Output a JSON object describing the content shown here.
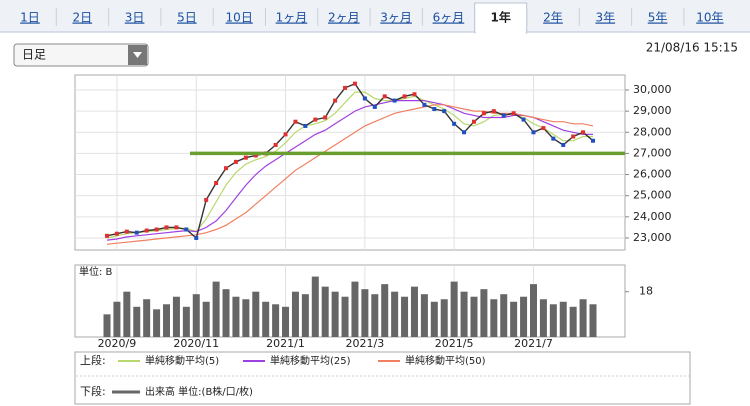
{
  "tabs": [
    "1日",
    "2日",
    "3日",
    "5日",
    "10日",
    "1ヶ月",
    "2ヶ月",
    "3ヶ月",
    "6ヶ月",
    "1年",
    "2年",
    "3年",
    "5年",
    "10年"
  ],
  "selected_tab": 9,
  "dropdown": "日足",
  "timestamp": "21/08/16 15:15",
  "legend": {
    "upper": "上段:",
    "lower": "下段:"
  },
  "chart_data": [
    {
      "type": "line",
      "categories": [
        null,
        "2020/9",
        null,
        null,
        null,
        null,
        null,
        null,
        null,
        "2020/11",
        null,
        null,
        null,
        null,
        null,
        null,
        null,
        null,
        "2021/1",
        null,
        null,
        null,
        null,
        null,
        null,
        null,
        "2021/3",
        null,
        null,
        null,
        null,
        null,
        null,
        null,
        null,
        "2021/5",
        null,
        null,
        null,
        null,
        null,
        null,
        null,
        "2021/7",
        null,
        null,
        null,
        null,
        null,
        null
      ],
      "price_values": [
        23100,
        23200,
        23300,
        23250,
        23350,
        23400,
        23500,
        23500,
        23400,
        23000,
        24800,
        25600,
        26300,
        26600,
        26800,
        26900,
        27000,
        27400,
        27900,
        28500,
        28300,
        28600,
        28700,
        29500,
        30100,
        30300,
        29600,
        29200,
        29700,
        29500,
        29700,
        29800,
        29300,
        29100,
        29000,
        28400,
        28000,
        28500,
        28900,
        29000,
        28800,
        28900,
        28600,
        28000,
        28200,
        27700,
        27400,
        27800,
        28000,
        27600
      ],
      "price_color": "#333333",
      "series": [
        {
          "name": "単純移動平均(5)",
          "color": "#b8d86a",
          "values": [
            23000,
            23100,
            23200,
            23250,
            23300,
            23350,
            23400,
            23450,
            23450,
            23300,
            23900,
            24700,
            25500,
            26100,
            26500,
            26700,
            26850,
            27100,
            27500,
            28000,
            28300,
            28400,
            28550,
            28900,
            29400,
            29900,
            29900,
            29600,
            29500,
            29500,
            29600,
            29700,
            29500,
            29300,
            29100,
            28800,
            28400,
            28300,
            28500,
            28800,
            28850,
            28850,
            28700,
            28400,
            28200,
            27900,
            27600,
            27600,
            27800,
            27800
          ]
        },
        {
          "name": "単純移動平均(25)",
          "color": "#a040e0",
          "values": [
            22900,
            22950,
            23050,
            23100,
            23150,
            23200,
            23250,
            23300,
            23350,
            23300,
            23500,
            23800,
            24300,
            24900,
            25500,
            26000,
            26400,
            26700,
            27000,
            27300,
            27600,
            27900,
            28100,
            28400,
            28700,
            29000,
            29200,
            29300,
            29400,
            29500,
            29500,
            29500,
            29500,
            29400,
            29300,
            29100,
            28900,
            28800,
            28700,
            28700,
            28700,
            28800,
            28800,
            28700,
            28500,
            28300,
            28100,
            28000,
            27900,
            27900
          ]
        },
        {
          "name": "単純移動平均(50)",
          "color": "#f08060",
          "values": [
            22700,
            22750,
            22800,
            22850,
            22900,
            22950,
            23000,
            23050,
            23100,
            23150,
            23250,
            23400,
            23600,
            23900,
            24200,
            24600,
            25000,
            25400,
            25800,
            26200,
            26500,
            26800,
            27100,
            27400,
            27700,
            28000,
            28300,
            28500,
            28700,
            28900,
            29000,
            29100,
            29200,
            29300,
            29300,
            29200,
            29100,
            29000,
            29000,
            28900,
            28900,
            28900,
            28800,
            28700,
            28600,
            28500,
            28500,
            28400,
            28400,
            28300
          ]
        }
      ],
      "hline": {
        "value": 27000,
        "color": "#6a9e2e"
      },
      "ylim": [
        22430,
        30710
      ],
      "yticks": [
        {
          "value": 23000,
          "label": "23,000"
        },
        {
          "value": 24000,
          "label": "24,000"
        },
        {
          "value": 25000,
          "label": "25,000"
        },
        {
          "value": 26000,
          "label": "26,000"
        },
        {
          "value": 27000,
          "label": "27,000"
        },
        {
          "value": 28000,
          "label": "28,000"
        },
        {
          "value": 29000,
          "label": "29,000"
        },
        {
          "value": 30000,
          "label": "30,000"
        }
      ],
      "grid": true
    },
    {
      "type": "bar",
      "unit_label": "単位: B",
      "name": "出来高 単位:(B株/口/枚)",
      "color": "#666666",
      "values": [
        9,
        14,
        18,
        12,
        15,
        11,
        13,
        16,
        12,
        17,
        14,
        22,
        19,
        16,
        15,
        18,
        14,
        13,
        12,
        18,
        17,
        24,
        20,
        18,
        16,
        22,
        19,
        17,
        21,
        18,
        16,
        20,
        17,
        14,
        15,
        22,
        18,
        16,
        19,
        15,
        17,
        14,
        16,
        21,
        15,
        13,
        14,
        12,
        15,
        13
      ],
      "ylim": [
        0,
        28.6
      ],
      "yticks": [
        18
      ]
    }
  ]
}
